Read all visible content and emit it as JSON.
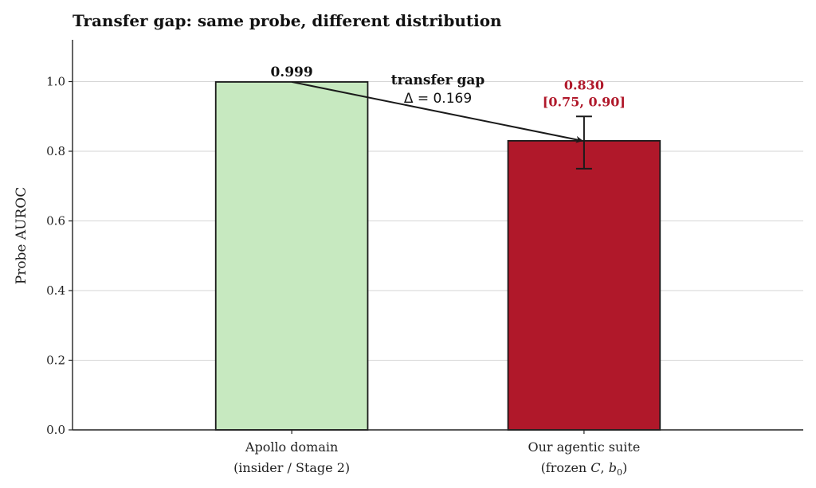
{
  "chart_data": {
    "type": "bar",
    "title": "Transfer gap: same probe, different distribution",
    "ylabel": "Probe AUROC",
    "xlabel": "",
    "ylim": [
      0,
      1.12
    ],
    "yticks": [
      0.0,
      0.2,
      0.4,
      0.6,
      0.8,
      1.0
    ],
    "ytick_labels": [
      "0.0",
      "0.2",
      "0.4",
      "0.6",
      "0.8",
      "1.0"
    ],
    "grid": "horizontal",
    "categories": [
      {
        "line1": "Apollo domain",
        "line2": "(insider / Stage 2)"
      },
      {
        "line1": "Our agentic suite",
        "line2": "(frozen C, b0)"
      }
    ],
    "values": [
      0.999,
      0.83
    ],
    "colors": [
      "#c7e9c0",
      "#b0182a"
    ],
    "edge_color": "#1a1a1a",
    "value_labels": [
      "0.999",
      "0.830"
    ],
    "value_label_colors": [
      "#111111",
      "#b0182a"
    ],
    "error_bars": [
      null,
      [
        0.75,
        0.9
      ]
    ],
    "ci_label": "[0.75, 0.90]",
    "annotation": {
      "title": "transfer gap",
      "text": "Δ = 0.169",
      "from": [
        0,
        0.999
      ],
      "to": [
        1,
        0.83
      ]
    }
  }
}
